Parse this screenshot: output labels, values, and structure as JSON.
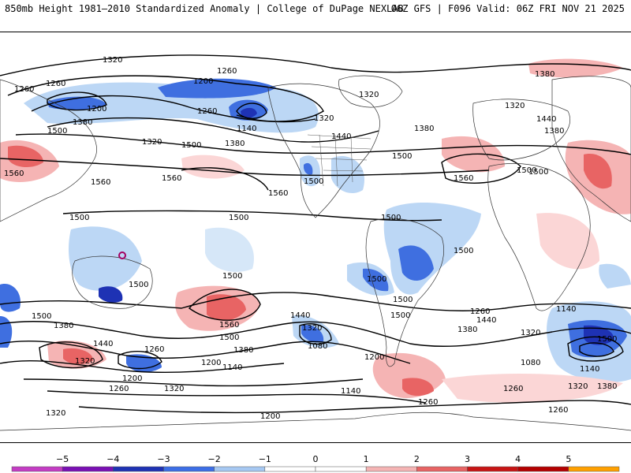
{
  "header": {
    "left": "850mb Height 1981–2010 Standardized Anomaly | College of DuPage NEXLAB",
    "right": "06Z GFS | F096 Valid: 06Z FRI NOV 21 2025"
  },
  "map": {
    "height_labels": [
      {
        "id": "h1",
        "text": "1320"
      },
      {
        "id": "h2",
        "text": "1260"
      },
      {
        "id": "h3",
        "text": "1200"
      },
      {
        "id": "h4",
        "text": "1260"
      },
      {
        "id": "h5",
        "text": "1200"
      },
      {
        "id": "h6",
        "text": "1260"
      },
      {
        "id": "h7",
        "text": "1140"
      },
      {
        "id": "h8",
        "text": "1380"
      },
      {
        "id": "h9",
        "text": "1320"
      },
      {
        "id": "h10",
        "text": "1320"
      },
      {
        "id": "h11",
        "text": "1500"
      },
      {
        "id": "h12",
        "text": "1380"
      },
      {
        "id": "h13",
        "text": "1440"
      },
      {
        "id": "h14",
        "text": "1320"
      },
      {
        "id": "h15",
        "text": "1500"
      },
      {
        "id": "h16",
        "text": "1380"
      },
      {
        "id": "h17",
        "text": "1440"
      },
      {
        "id": "h18",
        "text": "1380"
      },
      {
        "id": "h19",
        "text": "1560"
      },
      {
        "id": "h20",
        "text": "1560"
      },
      {
        "id": "h21",
        "text": "1560"
      },
      {
        "id": "h22",
        "text": "1560"
      },
      {
        "id": "h23",
        "text": "1500"
      },
      {
        "id": "h24",
        "text": "1500"
      },
      {
        "id": "h25",
        "text": "1560"
      },
      {
        "id": "h26",
        "text": "1500"
      },
      {
        "id": "h27",
        "text": "1500"
      },
      {
        "id": "h28",
        "text": "1500"
      },
      {
        "id": "h29",
        "text": "1500"
      },
      {
        "id": "h30",
        "text": "1500"
      },
      {
        "id": "h31",
        "text": "1500"
      },
      {
        "id": "h32",
        "text": "1500"
      },
      {
        "id": "h33",
        "text": "1500"
      },
      {
        "id": "h34",
        "text": "1500"
      },
      {
        "id": "h35",
        "text": "1500"
      },
      {
        "id": "h36",
        "text": "1380"
      },
      {
        "id": "h37",
        "text": "1440"
      },
      {
        "id": "h38",
        "text": "1320"
      },
      {
        "id": "h39",
        "text": "1260"
      },
      {
        "id": "h40",
        "text": "1200"
      },
      {
        "id": "h41",
        "text": "1140"
      },
      {
        "id": "h42",
        "text": "1200"
      },
      {
        "id": "h43",
        "text": "1260"
      },
      {
        "id": "h44",
        "text": "1320"
      },
      {
        "id": "h45",
        "text": "1560"
      },
      {
        "id": "h46",
        "text": "1500"
      },
      {
        "id": "h47",
        "text": "1380"
      },
      {
        "id": "h48",
        "text": "1440"
      },
      {
        "id": "h49",
        "text": "1320"
      },
      {
        "id": "h50",
        "text": "1080"
      },
      {
        "id": "h51",
        "text": "1200"
      },
      {
        "id": "h52",
        "text": "1260"
      },
      {
        "id": "h53",
        "text": "1140"
      },
      {
        "id": "h54",
        "text": "1200"
      },
      {
        "id": "h55",
        "text": "1320"
      },
      {
        "id": "h56",
        "text": "1140"
      },
      {
        "id": "h57",
        "text": "1260"
      },
      {
        "id": "h58",
        "text": "1440"
      },
      {
        "id": "h59",
        "text": "1380"
      },
      {
        "id": "h60",
        "text": "1320"
      },
      {
        "id": "h61",
        "text": "1500"
      },
      {
        "id": "h62",
        "text": "1140"
      },
      {
        "id": "h63",
        "text": "1080"
      },
      {
        "id": "h64",
        "text": "1260"
      },
      {
        "id": "h65",
        "text": "1320"
      },
      {
        "id": "h66",
        "text": "1380"
      },
      {
        "id": "h67",
        "text": "1260"
      },
      {
        "id": "h68",
        "text": "1260"
      },
      {
        "id": "h69",
        "text": "1320"
      },
      {
        "id": "h70",
        "text": "1380"
      },
      {
        "id": "h71",
        "text": "1500"
      },
      {
        "id": "h72",
        "text": "1500"
      }
    ]
  },
  "colorbar": {
    "labels": [
      "−5",
      "−4",
      "−3",
      "−2",
      "−1",
      "0",
      "1",
      "2",
      "3",
      "4",
      "5"
    ],
    "colors": [
      "#c43cc4",
      "#7a10b4",
      "#1e32b4",
      "#3c6ee6",
      "#a6c8f2",
      "#ffffff",
      "#ffffff",
      "#f5b4b4",
      "#e86464",
      "#c81414",
      "#b40000",
      "#ffa000"
    ]
  }
}
